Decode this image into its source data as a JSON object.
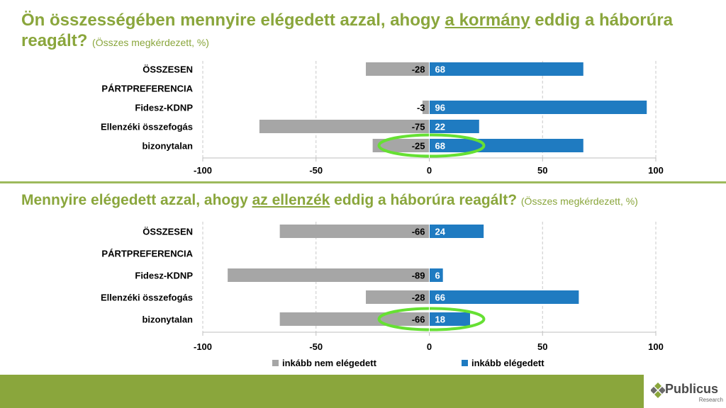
{
  "title1": {
    "pre": "Ön összességében mennyire elégedett azzal, ahogy ",
    "emph": "a kormány",
    "post": " eddig a háborúra reagált? ",
    "sub": "(Összes megkérdezett, %)"
  },
  "title2": {
    "pre": "Mennyire elégedett azzal, ahogy ",
    "emph": "az ellenzék",
    "post": " eddig a háborúra reagált? ",
    "sub": "(Összes megkérdezett, %)"
  },
  "colors": {
    "neg": "#a6a6a6",
    "pos": "#1f7bc1",
    "highlight": "#66e033",
    "title": "#8aa63c",
    "footer": "#8aa63c"
  },
  "chart_data": [
    {
      "type": "bar",
      "orientation": "horizontal-diverging",
      "categories": [
        "ÖSSZESEN",
        "PÁRTPREFERENCIA",
        "Fidesz-KDNP",
        "Ellenzéki összefogás",
        "bizonytalan"
      ],
      "series": [
        {
          "name": "inkább nem elégedett",
          "values": [
            -28,
            null,
            -3,
            -75,
            -25
          ]
        },
        {
          "name": "inkább elégedett",
          "values": [
            68,
            null,
            96,
            22,
            68
          ]
        }
      ],
      "xlim": [
        -100,
        100
      ],
      "xticks": [
        "-100",
        "-50",
        "0",
        "50",
        "100"
      ],
      "grid": "vertical dashed",
      "highlight_category": "bizonytalan"
    },
    {
      "type": "bar",
      "orientation": "horizontal-diverging",
      "categories": [
        "ÖSSZESEN",
        "PÁRTPREFERENCIA",
        "Fidesz-KDNP",
        "Ellenzéki összefogás",
        "bizonytalan"
      ],
      "series": [
        {
          "name": "inkább nem elégedett",
          "values": [
            -66,
            null,
            -89,
            -28,
            -66
          ]
        },
        {
          "name": "inkább elégedett",
          "values": [
            24,
            null,
            6,
            66,
            18
          ]
        }
      ],
      "xlim": [
        -100,
        100
      ],
      "xticks": [
        "-100",
        "-50",
        "0",
        "50",
        "100"
      ],
      "grid": "vertical dashed",
      "highlight_category": "bizonytalan"
    }
  ],
  "legend": {
    "placement": "bottom",
    "items": [
      {
        "label": "inkább nem elégedett",
        "color": "#a6a6a6"
      },
      {
        "label": "inkább elégedett",
        "color": "#1f7bc1"
      }
    ]
  },
  "logo": {
    "word": "Publicus",
    "sub": "Research",
    "icon": "diamond-cluster-icon"
  }
}
